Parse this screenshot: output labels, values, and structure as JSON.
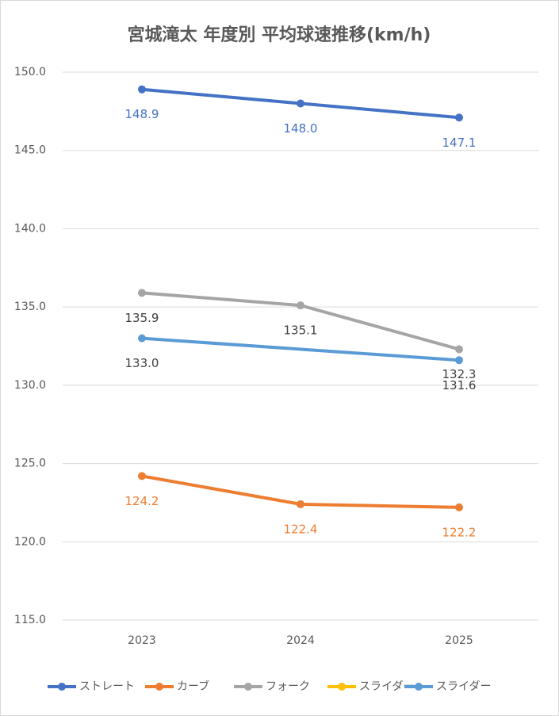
{
  "chart_data": {
    "type": "line",
    "title": "宮城滝太 年度別 平均球速推移(km/h)",
    "categories": [
      "2023",
      "2024",
      "2025"
    ],
    "series": [
      {
        "name": "ストレート",
        "color": "#4472c4",
        "label_color": "#4472c4",
        "values": [
          148.9,
          148.0,
          147.1
        ],
        "value_labels": [
          "148.9",
          "148.0",
          "147.1"
        ]
      },
      {
        "name": "カーブ",
        "color": "#ed7d31",
        "label_color": "#ed7d31",
        "values": [
          124.2,
          122.4,
          122.2
        ],
        "value_labels": [
          "124.2",
          "122.4",
          "122.2"
        ]
      },
      {
        "name": "フォーク",
        "color": "#a5a5a5",
        "label_color": "#404040",
        "values": [
          135.9,
          135.1,
          132.3
        ],
        "value_labels": [
          "135.9",
          "135.1",
          "132.3"
        ]
      },
      {
        "name": "スライダー",
        "color": "#ffc000",
        "label_color": "#404040",
        "values": [
          null,
          null,
          null
        ],
        "value_labels": [
          null,
          null,
          null
        ]
      },
      {
        "name": "スライダー",
        "color": "#5b9bd5",
        "label_color": "#404040",
        "values": [
          133.0,
          null,
          131.6
        ],
        "value_labels": [
          "133.0",
          null,
          "131.6"
        ]
      }
    ],
    "connect_gaps": true,
    "ylim": [
      115,
      150
    ],
    "yticks": [
      {
        "value": 115,
        "label": "115.0"
      },
      {
        "value": 120,
        "label": "120.0"
      },
      {
        "value": 125,
        "label": "125.0"
      },
      {
        "value": 130,
        "label": "130.0"
      },
      {
        "value": 135,
        "label": "135.0"
      },
      {
        "value": 140,
        "label": "140.0"
      },
      {
        "value": 145,
        "label": "145.0"
      },
      {
        "value": 150,
        "label": "150.0"
      }
    ],
    "grid": true,
    "legend": "bottom"
  }
}
